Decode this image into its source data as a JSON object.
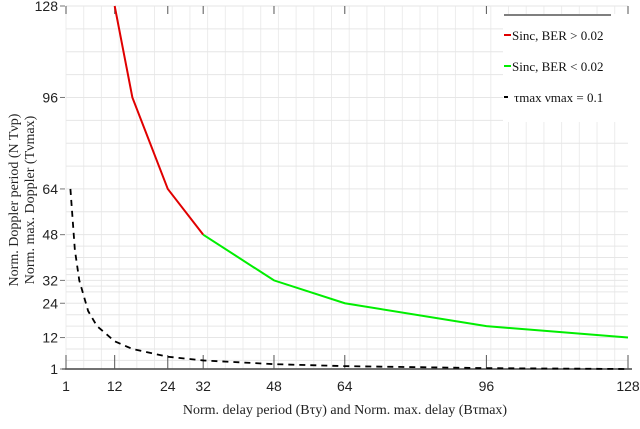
{
  "chart_data": {
    "type": "line",
    "title": "",
    "xlabel": "Norm. delay period (Bτ_y) and Norm. max. delay (Bτ_max)",
    "ylabel": [
      "Norm. Doppler period (N   Tν_p)",
      "Norm. max. Doppler (Tν_max)"
    ],
    "xlim": [
      1,
      128
    ],
    "ylim": [
      1,
      128
    ],
    "xticks": [
      1,
      12,
      24,
      32,
      48,
      64,
      96,
      128
    ],
    "yticks": [
      1,
      12,
      24,
      32,
      48,
      64,
      96,
      128
    ],
    "grid": true,
    "legend_position": "upper right",
    "series": [
      {
        "name": "Sinc, BER > 0.02",
        "color": "#e00000",
        "style": "solid",
        "x": [
          12,
          16,
          24,
          32
        ],
        "y": [
          128,
          96,
          64,
          48
        ]
      },
      {
        "name": "Sinc, BER < 0.02",
        "color": "#00ee00",
        "style": "solid",
        "x": [
          32,
          48,
          64,
          96,
          128
        ],
        "y": [
          48,
          32,
          24,
          16,
          12
        ]
      },
      {
        "name": "τ_max ν_max = 0.1",
        "color": "#000000",
        "style": "dashed",
        "x": [
          2,
          3,
          4,
          6,
          8,
          12,
          16,
          24,
          32,
          48,
          64,
          96,
          128
        ],
        "y": [
          64,
          42.7,
          32,
          21.3,
          16,
          10.7,
          8,
          5.3,
          4,
          2.7,
          2,
          1.3,
          1
        ]
      }
    ]
  },
  "axes": {
    "xlabel_text": "Norm. delay period (Bτy) and Norm. max. delay (Bτmax)",
    "ylabel_line1": "Norm. Doppler period (N   Tνp)",
    "ylabel_line2": "Norm. max. Doppler (Tνmax)"
  },
  "legend": {
    "items": [
      {
        "label": "Sinc, BER > 0.02",
        "color": "#e00000"
      },
      {
        "label": "Sinc, BER < 0.02",
        "color": "#00ee00"
      },
      {
        "label": "τmax νmax = 0.1",
        "color": "#000000"
      }
    ]
  }
}
